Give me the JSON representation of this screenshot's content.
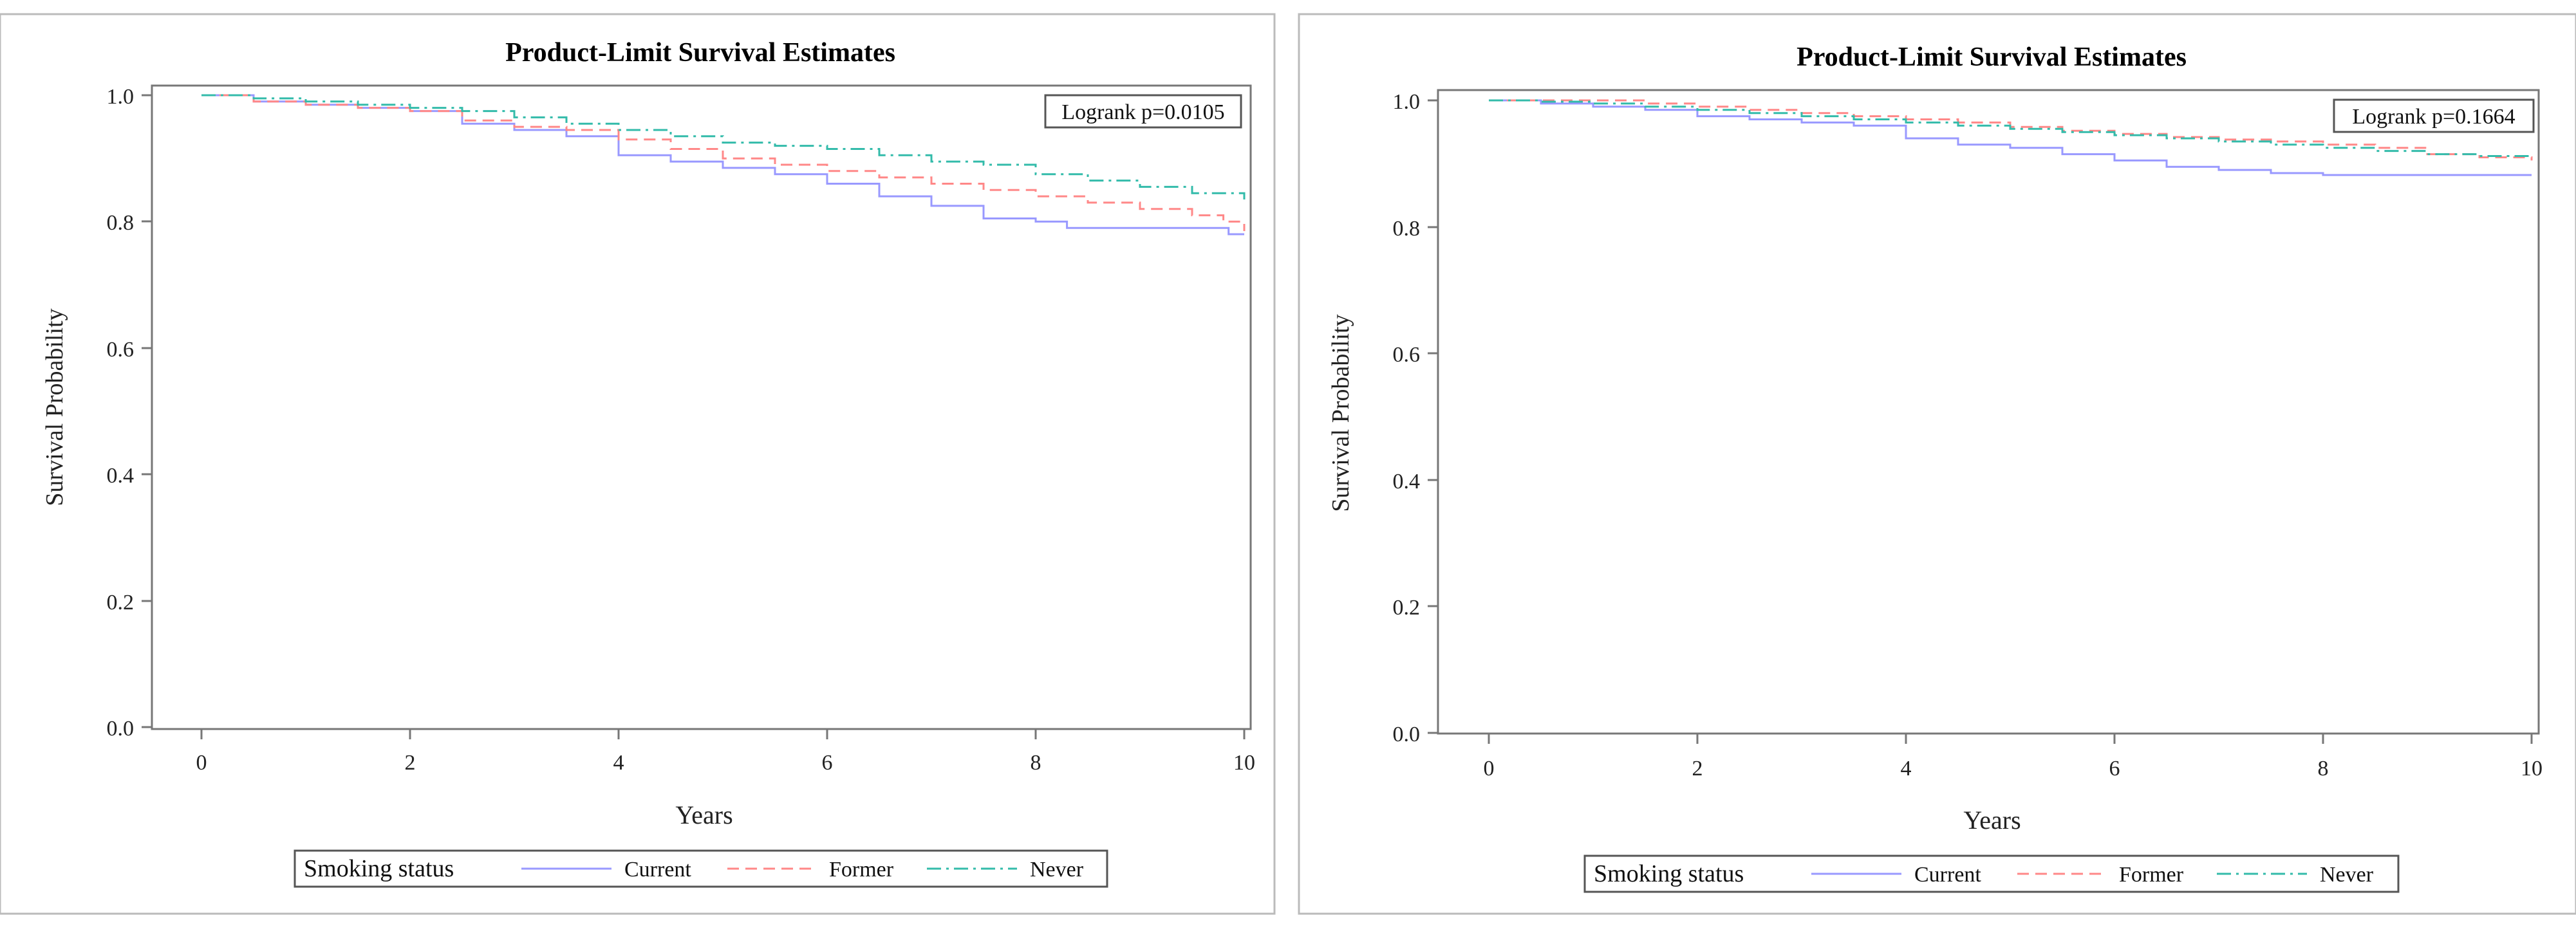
{
  "chart_data": [
    {
      "type": "line",
      "step": true,
      "title": "Product-Limit Survival Estimates",
      "xlabel": "Years",
      "ylabel": "Survival Probability",
      "xlim": [
        0,
        10
      ],
      "ylim": [
        0,
        1
      ],
      "xticks": [
        0,
        2,
        4,
        6,
        8,
        10
      ],
      "yticks": [
        "0.0",
        "0.2",
        "0.4",
        "0.6",
        "0.8",
        "1.0"
      ],
      "annotation": "Logrank p=0.0105",
      "legend_title": "Smoking status",
      "legend_position": "bottom",
      "series": [
        {
          "name": "Current",
          "color": "#9999ff",
          "dash": "solid",
          "x": [
            0,
            0.5,
            1.0,
            1.5,
            2.0,
            2.5,
            3.0,
            3.5,
            4.0,
            4.5,
            5.0,
            5.5,
            6.0,
            6.5,
            7.0,
            7.5,
            8.0,
            8.3,
            8.6,
            9.0,
            9.5,
            9.8,
            9.85,
            10
          ],
          "y": [
            1.0,
            0.99,
            0.985,
            0.98,
            0.975,
            0.955,
            0.945,
            0.935,
            0.905,
            0.895,
            0.885,
            0.875,
            0.86,
            0.84,
            0.825,
            0.805,
            0.8,
            0.79,
            0.79,
            0.79,
            0.79,
            0.79,
            0.78,
            0.78
          ]
        },
        {
          "name": "Former",
          "color": "#ff8888",
          "dash": "dash",
          "x": [
            0,
            0.5,
            1.0,
            1.5,
            2.0,
            2.5,
            3.0,
            3.5,
            4.0,
            4.5,
            5.0,
            5.5,
            6.0,
            6.5,
            7.0,
            7.5,
            8.0,
            8.5,
            9.0,
            9.5,
            9.8,
            10
          ],
          "y": [
            1.0,
            0.99,
            0.985,
            0.98,
            0.975,
            0.96,
            0.95,
            0.945,
            0.93,
            0.915,
            0.9,
            0.89,
            0.88,
            0.87,
            0.86,
            0.85,
            0.84,
            0.83,
            0.82,
            0.81,
            0.8,
            0.785
          ]
        },
        {
          "name": "Never",
          "color": "#33bbaa",
          "dash": "dashdot",
          "x": [
            0,
            0.5,
            1.0,
            1.5,
            2.0,
            2.5,
            3.0,
            3.5,
            4.0,
            4.5,
            5.0,
            5.5,
            6.0,
            6.5,
            7.0,
            7.5,
            8.0,
            8.5,
            9.0,
            9.5,
            10
          ],
          "y": [
            1.0,
            0.995,
            0.99,
            0.985,
            0.98,
            0.975,
            0.965,
            0.955,
            0.945,
            0.935,
            0.925,
            0.92,
            0.915,
            0.905,
            0.895,
            0.89,
            0.875,
            0.865,
            0.855,
            0.845,
            0.835
          ]
        }
      ]
    },
    {
      "type": "line",
      "step": true,
      "title": "Product-Limit Survival Estimates",
      "xlabel": "Years",
      "ylabel": "Survival Probability",
      "xlim": [
        0,
        10
      ],
      "ylim": [
        0,
        1
      ],
      "xticks": [
        0,
        2,
        4,
        6,
        8,
        10
      ],
      "yticks": [
        "0.0",
        "0.2",
        "0.4",
        "0.6",
        "0.8",
        "1.0"
      ],
      "annotation": "Logrank p=0.1664",
      "legend_title": "Smoking status",
      "legend_position": "bottom",
      "series": [
        {
          "name": "Current",
          "color": "#9999ff",
          "dash": "solid",
          "x": [
            0,
            0.5,
            1.0,
            1.5,
            2.0,
            2.5,
            3.0,
            3.5,
            4.0,
            4.5,
            5.0,
            5.5,
            6.0,
            6.5,
            7.0,
            7.5,
            8.0,
            9.0,
            10
          ],
          "y": [
            1.0,
            0.995,
            0.99,
            0.985,
            0.975,
            0.97,
            0.965,
            0.96,
            0.94,
            0.93,
            0.925,
            0.915,
            0.905,
            0.895,
            0.89,
            0.885,
            0.882,
            0.882,
            0.882
          ]
        },
        {
          "name": "Former",
          "color": "#ff8888",
          "dash": "dash",
          "x": [
            0,
            0.5,
            1.0,
            1.5,
            2.0,
            2.5,
            3.0,
            3.5,
            4.0,
            4.5,
            5.0,
            5.5,
            6.0,
            6.5,
            7.0,
            7.5,
            8.0,
            8.5,
            9.0,
            9.5,
            10
          ],
          "y": [
            1.0,
            1.0,
            1.0,
            0.995,
            0.99,
            0.985,
            0.98,
            0.975,
            0.97,
            0.965,
            0.958,
            0.952,
            0.947,
            0.942,
            0.938,
            0.935,
            0.93,
            0.925,
            0.915,
            0.91,
            0.905
          ]
        },
        {
          "name": "Never",
          "color": "#33bbaa",
          "dash": "dashdot",
          "x": [
            0,
            0.5,
            1.0,
            1.5,
            2.0,
            2.5,
            3.0,
            3.5,
            4.0,
            4.5,
            5.0,
            5.5,
            6.0,
            6.5,
            7.0,
            7.5,
            8.0,
            8.5,
            9.0,
            9.5,
            10
          ],
          "y": [
            1.0,
            0.998,
            0.995,
            0.99,
            0.985,
            0.98,
            0.975,
            0.97,
            0.965,
            0.96,
            0.955,
            0.95,
            0.945,
            0.94,
            0.935,
            0.93,
            0.925,
            0.92,
            0.915,
            0.912,
            0.91
          ]
        }
      ]
    }
  ]
}
